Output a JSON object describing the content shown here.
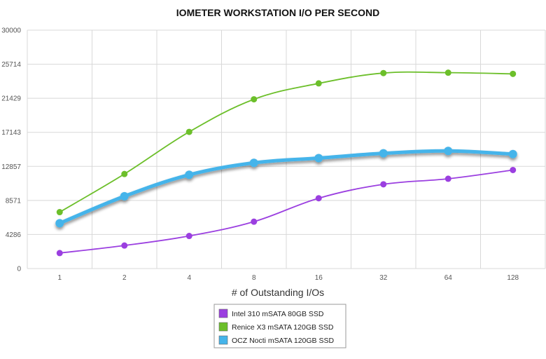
{
  "chart_data": {
    "type": "line",
    "title": "IOMETER WORKSTATION I/O PER SECOND",
    "xlabel": "# of Outstanding I/Os",
    "ylabel": "",
    "categories": [
      "1",
      "2",
      "4",
      "8",
      "16",
      "32",
      "64",
      "128"
    ],
    "yticks": [
      "0",
      "4286",
      "8571",
      "12857",
      "17143",
      "21429",
      "25714",
      "30000"
    ],
    "ylim": [
      0,
      30000
    ],
    "grid": true,
    "legend_position": "bottom-center",
    "series": [
      {
        "name": "Intel 310 mSATA 80GB SSD",
        "color": "#9b3fe0",
        "values": [
          1950,
          2900,
          4100,
          5900,
          8850,
          10600,
          11300,
          12400
        ]
      },
      {
        "name": "Renice X3 mSATA 120GB SSD",
        "color": "#6cbf2a",
        "values": [
          7100,
          11900,
          17200,
          21300,
          23300,
          24600,
          24650,
          24500
        ]
      },
      {
        "name": "OCZ Nocti mSATA 120GB SSD",
        "color": "#45b4ea",
        "values": [
          5700,
          9100,
          11800,
          13300,
          13900,
          14500,
          14800,
          14400
        ]
      }
    ]
  }
}
